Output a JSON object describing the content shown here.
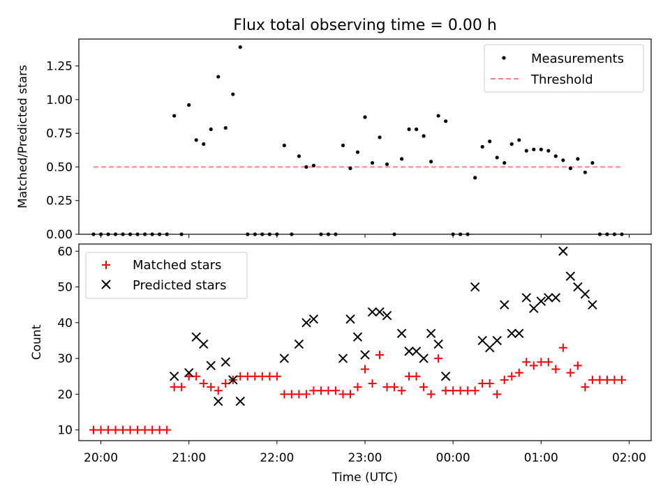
{
  "title": "Flux total observing time = 0.00 h",
  "colors": {
    "measurements": "#000000",
    "threshold": "#ff7f7f",
    "matched": "#ff0000",
    "predicted": "#000000"
  },
  "chart_data": [
    {
      "type": "scatter",
      "ylabel": "Matched/Predicted stars",
      "xlim": [
        "19:45",
        "02:15"
      ],
      "ylim": [
        0,
        1.45
      ],
      "yticks": [
        "0.00",
        "0.25",
        "0.50",
        "0.75",
        "1.00",
        "1.25"
      ],
      "legend_position": "top-right",
      "series": [
        {
          "name": "Measurements",
          "kind": "points",
          "points": [
            [
              "19:55",
              0
            ],
            [
              "20:00",
              0
            ],
            [
              "20:05",
              0
            ],
            [
              "20:10",
              0
            ],
            [
              "20:15",
              0
            ],
            [
              "20:20",
              0
            ],
            [
              "20:25",
              0
            ],
            [
              "20:30",
              0
            ],
            [
              "20:35",
              0
            ],
            [
              "20:40",
              0
            ],
            [
              "20:45",
              0
            ],
            [
              "20:50",
              0.88
            ],
            [
              "20:55",
              0
            ],
            [
              "21:00",
              0.96
            ],
            [
              "21:05",
              0.7
            ],
            [
              "21:10",
              0.67
            ],
            [
              "21:15",
              0.78
            ],
            [
              "21:20",
              1.17
            ],
            [
              "21:25",
              0.79
            ],
            [
              "21:30",
              1.04
            ],
            [
              "21:35",
              1.39
            ],
            [
              "21:40",
              0
            ],
            [
              "21:45",
              0
            ],
            [
              "21:50",
              0
            ],
            [
              "21:55",
              0
            ],
            [
              "22:00",
              0
            ],
            [
              "22:05",
              0.66
            ],
            [
              "22:10",
              0
            ],
            [
              "22:15",
              0.58
            ],
            [
              "22:20",
              0.5
            ],
            [
              "22:25",
              0.51
            ],
            [
              "22:30",
              0
            ],
            [
              "22:35",
              0
            ],
            [
              "22:40",
              0
            ],
            [
              "22:45",
              0.66
            ],
            [
              "22:50",
              0.49
            ],
            [
              "22:55",
              0.61
            ],
            [
              "23:00",
              0.87
            ],
            [
              "23:05",
              0.53
            ],
            [
              "23:10",
              0.72
            ],
            [
              "23:15",
              0.52
            ],
            [
              "23:20",
              0
            ],
            [
              "23:25",
              0.56
            ],
            [
              "23:30",
              0.78
            ],
            [
              "23:35",
              0.78
            ],
            [
              "23:40",
              0.73
            ],
            [
              "23:45",
              0.54
            ],
            [
              "23:50",
              0.88
            ],
            [
              "23:55",
              0.84
            ],
            [
              "00:00",
              0
            ],
            [
              "00:05",
              0
            ],
            [
              "00:10",
              0
            ],
            [
              "00:15",
              0.42
            ],
            [
              "00:20",
              0.65
            ],
            [
              "00:25",
              0.69
            ],
            [
              "00:30",
              0.57
            ],
            [
              "00:35",
              0.53
            ],
            [
              "00:40",
              0.67
            ],
            [
              "00:45",
              0.7
            ],
            [
              "00:50",
              0.62
            ],
            [
              "00:55",
              0.63
            ],
            [
              "01:00",
              0.63
            ],
            [
              "01:05",
              0.62
            ],
            [
              "01:10",
              0.58
            ],
            [
              "01:15",
              0.55
            ],
            [
              "01:20",
              0.49
            ],
            [
              "01:25",
              0.56
            ],
            [
              "01:30",
              0.46
            ],
            [
              "01:35",
              0.53
            ],
            [
              "01:40",
              0
            ],
            [
              "01:45",
              0
            ],
            [
              "01:50",
              0
            ],
            [
              "01:55",
              0
            ]
          ]
        },
        {
          "name": "Threshold",
          "kind": "dashed-line",
          "points": [
            [
              "19:55",
              0.5
            ],
            [
              "01:55",
              0.5
            ]
          ]
        }
      ]
    },
    {
      "type": "scatter",
      "xlabel": "Time (UTC)",
      "ylabel": "Count",
      "xlim": [
        "19:45",
        "02:15"
      ],
      "ylim": [
        7,
        62
      ],
      "xticks": [
        "20:00",
        "21:00",
        "22:00",
        "23:00",
        "00:00",
        "01:00",
        "02:00"
      ],
      "yticks": [
        "10",
        "20",
        "30",
        "40",
        "50",
        "60"
      ],
      "legend_position": "top-left",
      "series": [
        {
          "name": "Matched stars",
          "marker": "plus",
          "points": [
            [
              "19:55",
              10
            ],
            [
              "20:00",
              10
            ],
            [
              "20:05",
              10
            ],
            [
              "20:10",
              10
            ],
            [
              "20:15",
              10
            ],
            [
              "20:20",
              10
            ],
            [
              "20:25",
              10
            ],
            [
              "20:30",
              10
            ],
            [
              "20:35",
              10
            ],
            [
              "20:40",
              10
            ],
            [
              "20:45",
              10
            ],
            [
              "20:50",
              22
            ],
            [
              "20:55",
              22
            ],
            [
              "21:00",
              25
            ],
            [
              "21:05",
              25
            ],
            [
              "21:10",
              23
            ],
            [
              "21:15",
              22
            ],
            [
              "21:20",
              21
            ],
            [
              "21:25",
              23
            ],
            [
              "21:30",
              24
            ],
            [
              "21:35",
              25
            ],
            [
              "21:40",
              25
            ],
            [
              "21:45",
              25
            ],
            [
              "21:50",
              25
            ],
            [
              "21:55",
              25
            ],
            [
              "22:00",
              25
            ],
            [
              "22:05",
              20
            ],
            [
              "22:10",
              20
            ],
            [
              "22:15",
              20
            ],
            [
              "22:20",
              20
            ],
            [
              "22:25",
              21
            ],
            [
              "22:30",
              21
            ],
            [
              "22:35",
              21
            ],
            [
              "22:40",
              21
            ],
            [
              "22:45",
              20
            ],
            [
              "22:50",
              20
            ],
            [
              "22:55",
              22
            ],
            [
              "23:00",
              27
            ],
            [
              "23:05",
              23
            ],
            [
              "23:10",
              31
            ],
            [
              "23:15",
              22
            ],
            [
              "23:20",
              22
            ],
            [
              "23:25",
              21
            ],
            [
              "23:30",
              25
            ],
            [
              "23:35",
              25
            ],
            [
              "23:40",
              22
            ],
            [
              "23:45",
              20
            ],
            [
              "23:50",
              30
            ],
            [
              "23:55",
              21
            ],
            [
              "00:00",
              21
            ],
            [
              "00:05",
              21
            ],
            [
              "00:10",
              21
            ],
            [
              "00:15",
              21
            ],
            [
              "00:20",
              23
            ],
            [
              "00:25",
              23
            ],
            [
              "00:30",
              20
            ],
            [
              "00:35",
              24
            ],
            [
              "00:40",
              25
            ],
            [
              "00:45",
              26
            ],
            [
              "00:50",
              29
            ],
            [
              "00:55",
              28
            ],
            [
              "01:00",
              29
            ],
            [
              "01:05",
              29
            ],
            [
              "01:10",
              27
            ],
            [
              "01:15",
              33
            ],
            [
              "01:20",
              26
            ],
            [
              "01:25",
              28
            ],
            [
              "01:30",
              22
            ],
            [
              "01:35",
              24
            ],
            [
              "01:40",
              24
            ],
            [
              "01:45",
              24
            ],
            [
              "01:50",
              24
            ],
            [
              "01:55",
              24
            ]
          ]
        },
        {
          "name": "Predicted stars",
          "marker": "x",
          "points": [
            [
              "20:50",
              25
            ],
            [
              "21:00",
              26
            ],
            [
              "21:05",
              36
            ],
            [
              "21:10",
              34
            ],
            [
              "21:15",
              28
            ],
            [
              "21:20",
              18
            ],
            [
              "21:25",
              29
            ],
            [
              "21:30",
              24
            ],
            [
              "21:35",
              18
            ],
            [
              "22:05",
              30
            ],
            [
              "22:15",
              34
            ],
            [
              "22:20",
              40
            ],
            [
              "22:25",
              41
            ],
            [
              "22:45",
              30
            ],
            [
              "22:50",
              41
            ],
            [
              "22:55",
              36
            ],
            [
              "23:00",
              31
            ],
            [
              "23:05",
              43
            ],
            [
              "23:10",
              43
            ],
            [
              "23:15",
              42
            ],
            [
              "23:25",
              37
            ],
            [
              "23:30",
              32
            ],
            [
              "23:35",
              32
            ],
            [
              "23:40",
              30
            ],
            [
              "23:45",
              37
            ],
            [
              "23:50",
              34
            ],
            [
              "23:55",
              25
            ],
            [
              "00:15",
              50
            ],
            [
              "00:20",
              35
            ],
            [
              "00:25",
              33
            ],
            [
              "00:30",
              35
            ],
            [
              "00:35",
              45
            ],
            [
              "00:40",
              37
            ],
            [
              "00:45",
              37
            ],
            [
              "00:50",
              47
            ],
            [
              "00:55",
              44
            ],
            [
              "01:00",
              46
            ],
            [
              "01:05",
              47
            ],
            [
              "01:10",
              47
            ],
            [
              "01:15",
              60
            ],
            [
              "01:20",
              53
            ],
            [
              "01:25",
              50
            ],
            [
              "01:30",
              48
            ],
            [
              "01:35",
              45
            ]
          ]
        }
      ]
    }
  ]
}
